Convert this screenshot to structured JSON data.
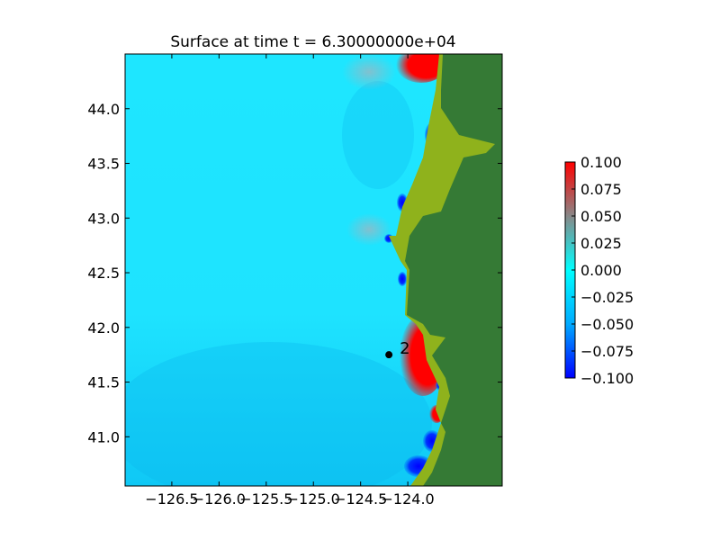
{
  "chart_data": {
    "type": "heatmap",
    "title": "Surface at time t = 6.30000000e+04",
    "xlabel": "",
    "ylabel": "",
    "xlim": [
      -126.995,
      -123.0
    ],
    "ylim": [
      40.55,
      44.5
    ],
    "x_ticks": [
      -126.5,
      -126.0,
      -125.5,
      -125.0,
      -124.5,
      -124.0
    ],
    "x_tick_labels": [
      "−126.5",
      "−126.0",
      "−125.5",
      "−125.0",
      "−124.5",
      "−124.0"
    ],
    "y_ticks": [
      41.0,
      41.5,
      42.0,
      42.5,
      43.0,
      43.5,
      44.0
    ],
    "y_tick_labels": [
      "41.0",
      "41.5",
      "42.0",
      "42.5",
      "43.0",
      "43.5",
      "44.0"
    ],
    "grid": false,
    "colorbar": {
      "vmin": -0.1,
      "vmax": 0.1,
      "ticks": [
        0.1,
        0.075,
        0.05,
        0.025,
        0.0,
        -0.025,
        -0.05,
        -0.075,
        -0.1
      ],
      "tick_labels": [
        "0.100",
        "0.075",
        "0.050",
        "0.025",
        "0.000",
        "−0.025",
        "−0.050",
        "−0.075",
        "−0.100"
      ],
      "colors": [
        "#0000ff",
        "#00aaff",
        "#00ffff",
        "#888888",
        "#ff0000"
      ]
    },
    "land_color": "#357a35",
    "coast_color": "#8fb21c",
    "gauges": [
      {
        "label": "2",
        "x": -124.2,
        "y": 41.75
      }
    ]
  }
}
